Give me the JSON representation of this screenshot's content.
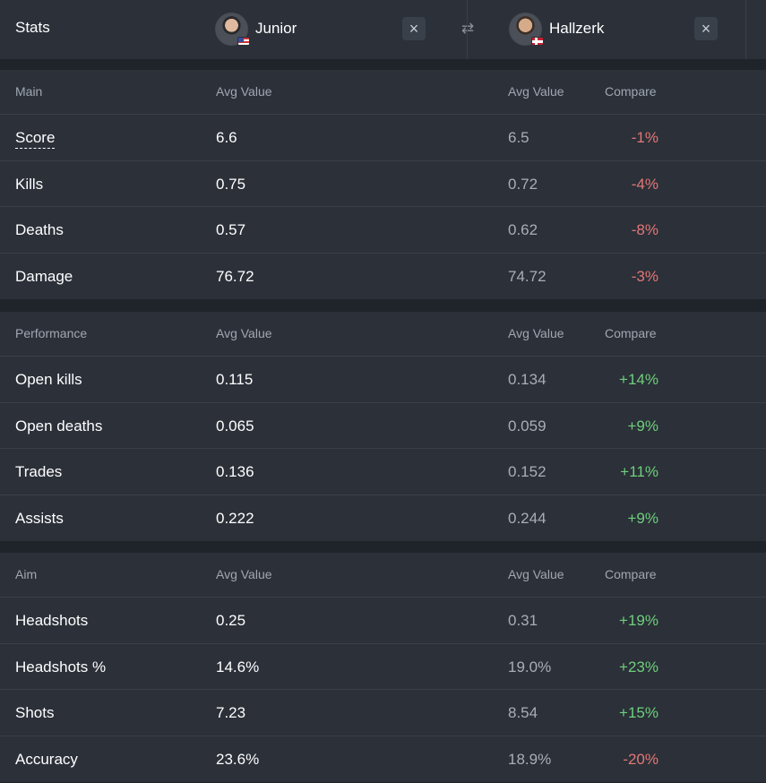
{
  "header": {
    "stats_label": "Stats",
    "player1": {
      "name": "Junior",
      "flag": "us-flag"
    },
    "player2": {
      "name": "Hallzerk",
      "flag": "norway-flag"
    },
    "remove_icon": "×",
    "swap_icon": "⇄"
  },
  "sections": [
    {
      "title": "Main",
      "col_avg1": "Avg Value",
      "col_avg2": "Avg Value",
      "col_compare": "Compare",
      "rows": [
        {
          "name": "Score",
          "v1": "6.6",
          "v2": "6.5",
          "compare": "-1%"
        },
        {
          "name": "Kills",
          "v1": "0.75",
          "v2": "0.72",
          "compare": "-4%"
        },
        {
          "name": "Deaths",
          "v1": "0.57",
          "v2": "0.62",
          "compare": "-8%"
        },
        {
          "name": "Damage",
          "v1": "76.72",
          "v2": "74.72",
          "compare": "-3%"
        }
      ]
    },
    {
      "title": "Performance",
      "col_avg1": "Avg Value",
      "col_avg2": "Avg Value",
      "col_compare": "Compare",
      "rows": [
        {
          "name": "Open kills",
          "v1": "0.115",
          "v2": "0.134",
          "compare": "+14%"
        },
        {
          "name": "Open deaths",
          "v1": "0.065",
          "v2": "0.059",
          "compare": "+9%"
        },
        {
          "name": "Trades",
          "v1": "0.136",
          "v2": "0.152",
          "compare": "+11%"
        },
        {
          "name": "Assists",
          "v1": "0.222",
          "v2": "0.244",
          "compare": "+9%"
        }
      ]
    },
    {
      "title": "Aim",
      "col_avg1": "Avg Value",
      "col_avg2": "Avg Value",
      "col_compare": "Compare",
      "rows": [
        {
          "name": "Headshots",
          "v1": "0.25",
          "v2": "0.31",
          "compare": "+19%"
        },
        {
          "name": "Headshots %",
          "v1": "14.6%",
          "v2": "19.0%",
          "compare": "+23%"
        },
        {
          "name": "Shots",
          "v1": "7.23",
          "v2": "8.54",
          "compare": "+15%"
        },
        {
          "name": "Accuracy",
          "v1": "23.6%",
          "v2": "18.9%",
          "compare": "-20%"
        }
      ]
    }
  ],
  "colors": {
    "negative": "#e37776",
    "positive": "#6fcf7c",
    "panel": "#2b3039",
    "background": "#1f242b"
  }
}
